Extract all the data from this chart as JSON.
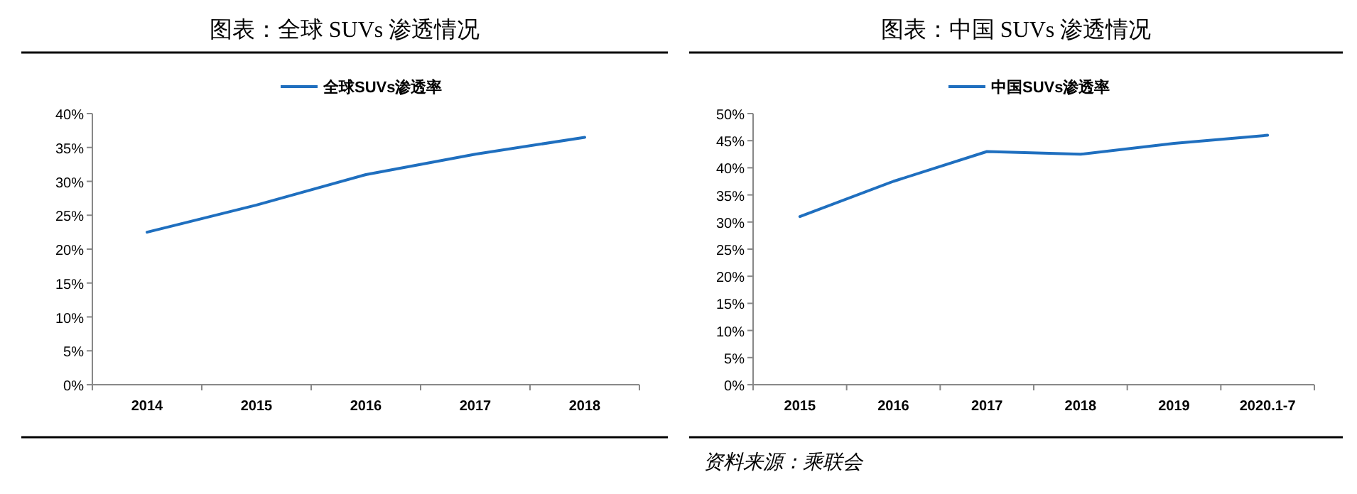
{
  "chart_data": [
    {
      "type": "line",
      "title": "图表：全球 SUVs 渗透情况",
      "categories": [
        "2014",
        "2015",
        "2016",
        "2017",
        "2018"
      ],
      "series": [
        {
          "name": "全球SUVs渗透率",
          "color": "#1f6fbf",
          "values": [
            22.5,
            26.5,
            31,
            34,
            36.5
          ]
        }
      ],
      "ylim": [
        0,
        40
      ],
      "yticks": [
        {
          "value": 0,
          "label": "0%"
        },
        {
          "value": 5,
          "label": "5%"
        },
        {
          "value": 10,
          "label": "10%"
        },
        {
          "value": 15,
          "label": "15%"
        },
        {
          "value": 20,
          "label": "20%"
        },
        {
          "value": 25,
          "label": "25%"
        },
        {
          "value": 30,
          "label": "30%"
        },
        {
          "value": 35,
          "label": "35%"
        },
        {
          "value": 40,
          "label": "40%"
        }
      ],
      "legend": "top"
    },
    {
      "type": "line",
      "title": "图表：中国 SUVs 渗透情况",
      "categories": [
        "2015",
        "2016",
        "2017",
        "2018",
        "2019",
        "2020.1-7"
      ],
      "series": [
        {
          "name": "中国SUVs渗透率",
          "color": "#1f6fbf",
          "values": [
            31,
            37.5,
            43,
            42.5,
            44.5,
            46
          ]
        }
      ],
      "ylim": [
        0,
        50
      ],
      "yticks": [
        {
          "value": 0,
          "label": "0%"
        },
        {
          "value": 5,
          "label": "5%"
        },
        {
          "value": 10,
          "label": "10%"
        },
        {
          "value": 15,
          "label": "15%"
        },
        {
          "value": 20,
          "label": "20%"
        },
        {
          "value": 25,
          "label": "25%"
        },
        {
          "value": 30,
          "label": "30%"
        },
        {
          "value": 35,
          "label": "35%"
        },
        {
          "value": 40,
          "label": "40%"
        },
        {
          "value": 45,
          "label": "45%"
        },
        {
          "value": 50,
          "label": "50%"
        }
      ],
      "legend": "top",
      "annotations": [
        "资料来源：乘联会"
      ]
    }
  ]
}
